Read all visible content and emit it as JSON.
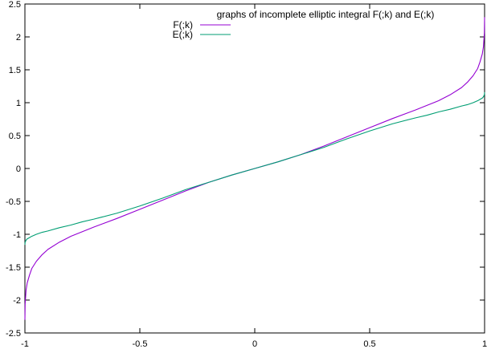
{
  "chart_data": {
    "type": "line",
    "title": "graphs of incomplete elliptic integral F(;k) and E(;k)",
    "xlabel": "",
    "ylabel": "",
    "xlim": [
      -1,
      1
    ],
    "ylim": [
      -2.5,
      2.5
    ],
    "x_ticks": [
      -1,
      -0.5,
      0,
      0.5,
      1
    ],
    "x_tick_labels": [
      "-1",
      "-0.5",
      "0",
      "0.5",
      "1"
    ],
    "y_ticks": [
      -2.5,
      -2,
      -1.5,
      -1,
      -0.5,
      0,
      0.5,
      1,
      1.5,
      2,
      2.5
    ],
    "y_tick_labels": [
      "-2.5",
      "-2",
      "-1.5",
      "-1",
      "-0.5",
      "0",
      "0.5",
      "1",
      "1.5",
      "2",
      "2.5"
    ],
    "grid": false,
    "legend_position": "top-center",
    "series": [
      {
        "name": "F(;k)",
        "color": "#9400d3",
        "x": [
          -1.0,
          -0.999,
          -0.995,
          -0.99,
          -0.98,
          -0.97,
          -0.95,
          -0.925,
          -0.9,
          -0.85,
          -0.8,
          -0.75,
          -0.7,
          -0.6,
          -0.5,
          -0.4,
          -0.3,
          -0.2,
          -0.1,
          0.0,
          0.1,
          0.2,
          0.3,
          0.4,
          0.5,
          0.6,
          0.7,
          0.75,
          0.8,
          0.85,
          0.9,
          0.925,
          0.95,
          0.97,
          0.98,
          0.99,
          0.995,
          0.999,
          1.0
        ],
        "y": [
          -2.3,
          -2.06,
          -1.85,
          -1.74,
          -1.62,
          -1.52,
          -1.41,
          -1.31,
          -1.23,
          -1.12,
          -1.03,
          -0.96,
          -0.89,
          -0.76,
          -0.62,
          -0.48,
          -0.34,
          -0.21,
          -0.1,
          0.0,
          0.1,
          0.21,
          0.34,
          0.48,
          0.62,
          0.76,
          0.89,
          0.96,
          1.03,
          1.12,
          1.23,
          1.31,
          1.41,
          1.52,
          1.62,
          1.74,
          1.85,
          2.06,
          2.3
        ]
      },
      {
        "name": "E(;k)",
        "color": "#009e73",
        "x": [
          -1.0,
          -0.999,
          -0.995,
          -0.99,
          -0.98,
          -0.97,
          -0.95,
          -0.925,
          -0.9,
          -0.85,
          -0.8,
          -0.75,
          -0.7,
          -0.6,
          -0.5,
          -0.4,
          -0.3,
          -0.2,
          -0.1,
          0.0,
          0.1,
          0.2,
          0.3,
          0.4,
          0.5,
          0.6,
          0.7,
          0.75,
          0.8,
          0.85,
          0.9,
          0.925,
          0.95,
          0.97,
          0.98,
          0.99,
          0.995,
          0.999,
          1.0
        ],
        "y": [
          -1.16,
          -1.12,
          -1.09,
          -1.07,
          -1.05,
          -1.03,
          -1.0,
          -0.97,
          -0.95,
          -0.9,
          -0.86,
          -0.81,
          -0.77,
          -0.68,
          -0.57,
          -0.45,
          -0.32,
          -0.21,
          -0.1,
          0.0,
          0.1,
          0.21,
          0.32,
          0.45,
          0.57,
          0.68,
          0.77,
          0.81,
          0.86,
          0.9,
          0.95,
          0.97,
          1.0,
          1.03,
          1.05,
          1.07,
          1.09,
          1.12,
          1.16
        ]
      }
    ]
  }
}
